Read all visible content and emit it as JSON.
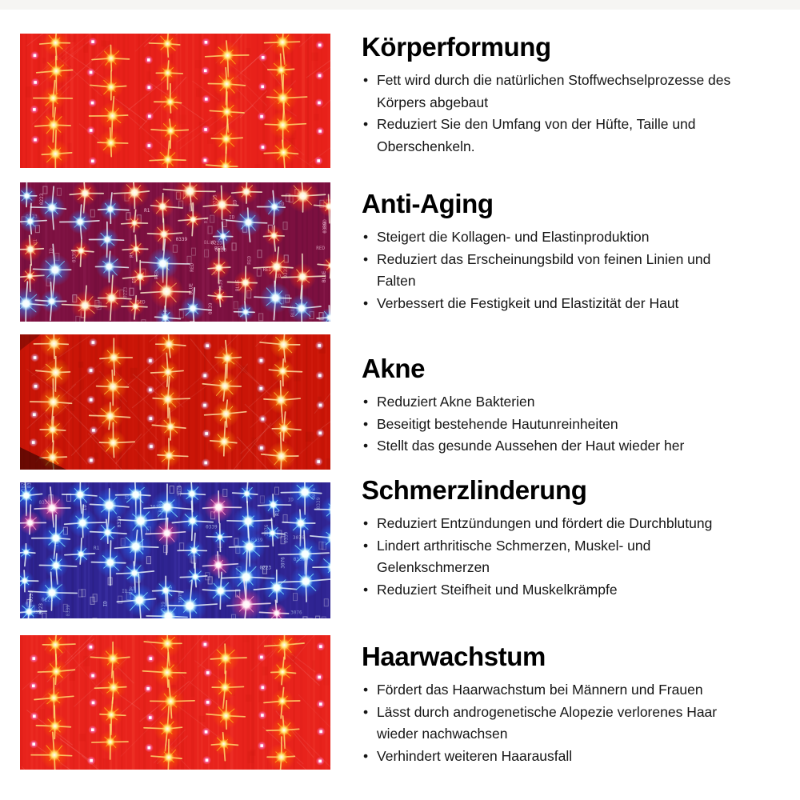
{
  "page": {
    "background": "#ffffff",
    "language": "de"
  },
  "sections": [
    {
      "title": "Körperformung",
      "bullets": [
        "Fett wird durch die natürlichen Stoffwechselprozesse des Körpers abgebaut",
        "Reduziert Sie den Umfang von der Hüfte, Taille und Oberschenkeln."
      ],
      "panel": {
        "alt": "red-light-led-panel",
        "style": "sparse",
        "bg": "#e8211a",
        "stripe_light": "#ff5a44",
        "stripe_dark": "#c41208",
        "star_core": "#ffe474",
        "star_mid": "#ffb41e",
        "star_outer": "#ff5a00",
        "dot_color": "#ff7ae0",
        "vignette": false
      }
    },
    {
      "title": "Anti-Aging",
      "bullets": [
        "Steigert die Kollagen- und Elastinproduktion",
        "Reduziert das Erscheinungsbild von feinen Linien und Falten",
        "Verbessert die Festigkeit und Elastizität der Haut"
      ],
      "panel": {
        "alt": "red-and-blue-led-panel",
        "style": "dense",
        "bg": "#7c1040",
        "stripe_light": "#b03a72",
        "stripe_dark": "#4f082a",
        "led_palettes": [
          [
            "#fff2cf",
            "#ffb163",
            "#ff2e12"
          ],
          [
            "#eefbff",
            "#7fd2ff",
            "#2f7cf6"
          ]
        ],
        "palette_weight": 0.52,
        "label_color": "#ffd9ec",
        "pcb_labels": [
          "0339",
          "BLUE",
          "RED",
          "R1",
          "0223",
          "ID"
        ]
      }
    },
    {
      "title": "Akne",
      "bullets": [
        "Reduziert Akne Bakterien",
        "Beseitigt bestehende Hautunreinheiten",
        "Stellt das gesunde Aussehen der Haut wieder her"
      ],
      "panel": {
        "alt": "deep-red-led-panel",
        "style": "sparse",
        "bg": "#ca1507",
        "stripe_light": "#ef4030",
        "stripe_dark": "#930d03",
        "star_core": "#ffe9a8",
        "star_mid": "#ffc23e",
        "star_outer": "#ff7a00",
        "dot_color": "#dbb8f0",
        "vignette": true
      }
    },
    {
      "title": "Schmerzlinderung",
      "bullets": [
        "Reduziert Entzündungen und fördert die Durchblutung",
        "Lindert arthritische Schmerzen, Muskel- und Gelenkschmerzen",
        "Reduziert Steifheit und Muskelkrämpfe"
      ],
      "panel": {
        "alt": "blue-light-led-panel",
        "style": "dense",
        "bg": "#2f2492",
        "stripe_light": "#5a4fd0",
        "stripe_dark": "#1c1260",
        "led_palettes": [
          [
            "#f2ffff",
            "#86e8ff",
            "#2070ff"
          ],
          [
            "#fff0f7",
            "#ff9fd0",
            "#ef3f8e"
          ]
        ],
        "palette_weight": 0.8,
        "label_color": "#cfe6ff",
        "pcb_labels": [
          "0339",
          "R1",
          "0223",
          "3076",
          "ID"
        ]
      }
    },
    {
      "title": "Haarwachstum",
      "bullets": [
        "Fördert das Haarwachstum bei Männern und Frauen",
        "Lässt durch androgenetische Alopezie verlorenes Haar wieder nachwachsen",
        "Verhindert weiteren Haarausfall"
      ],
      "panel": {
        "alt": "red-light-led-panel",
        "style": "sparse",
        "bg": "#e8231c",
        "stripe_light": "#ff5a44",
        "stripe_dark": "#c41208",
        "star_core": "#ffe474",
        "star_mid": "#ffb41e",
        "star_outer": "#ff5a00",
        "dot_color": "#ff85e2",
        "vignette": false
      }
    }
  ]
}
